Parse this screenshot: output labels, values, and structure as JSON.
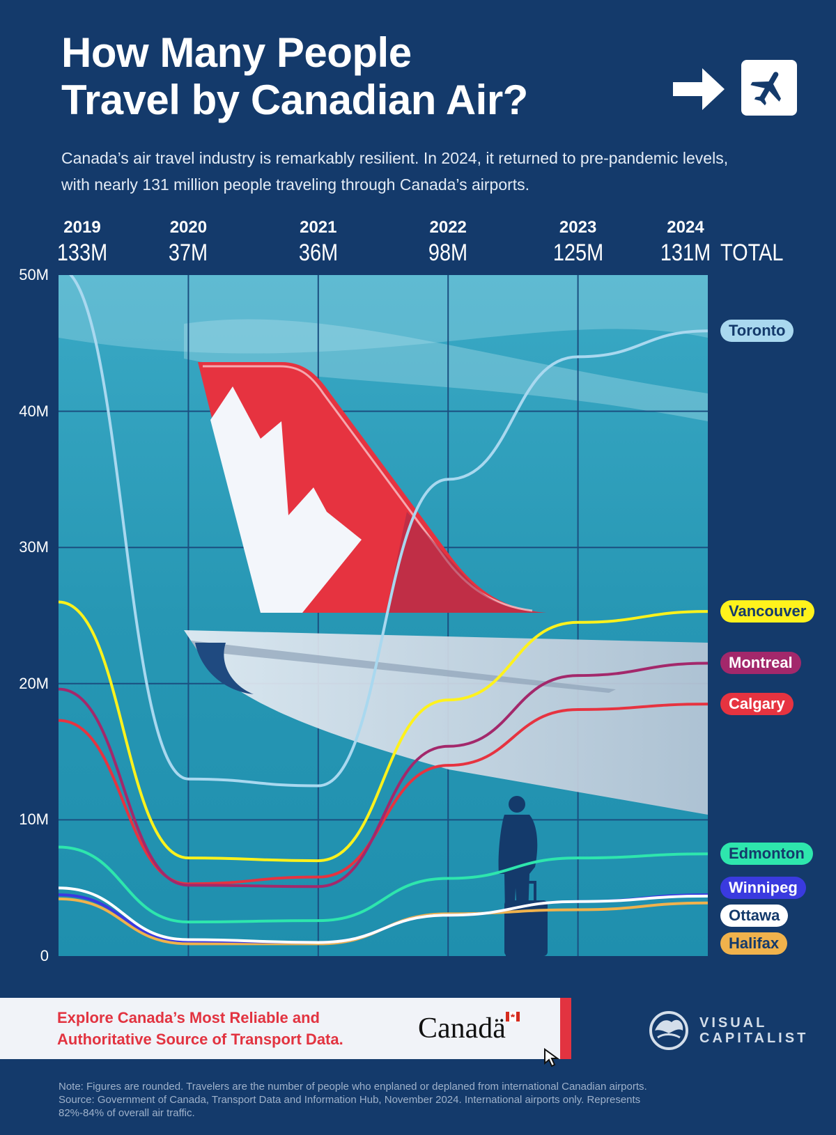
{
  "header": {
    "title_line1": "How Many People",
    "title_line2": "Travel by Canadian Air?",
    "subtitle": "Canada’s air travel industry is remarkably resilient. In 2024, it returned to pre-pandemic levels, with nearly 131 million people traveling through Canada’s airports."
  },
  "colors": {
    "background": "#143a6b",
    "plot_bg": "#2ba3c0",
    "tail_red": "#e63340",
    "Toronto": "#a9d8ef",
    "Vancouver": "#fff21c",
    "Montreal": "#a3286b",
    "Calgary": "#e63340",
    "Edmonton": "#2ee6ad",
    "Ottawa": "#ffffff",
    "Winnipeg": "#3a3adf",
    "Halifax": "#f0b24c"
  },
  "totals_label": "TOTAL",
  "chart_data": {
    "type": "line",
    "title": "How Many People Travel by Canadian Air?",
    "x": [
      "2019",
      "2020",
      "2021",
      "2022",
      "2023",
      "2024"
    ],
    "totals": [
      "133M",
      "37M",
      "36M",
      "98M",
      "125M",
      "131M"
    ],
    "y_unit": "travelers (millions)",
    "ylim": [
      0,
      50
    ],
    "y_ticks": [
      {
        "value": 50,
        "label": "50M"
      },
      {
        "value": 40,
        "label": "40M"
      },
      {
        "value": 30,
        "label": "30M"
      },
      {
        "value": 20,
        "label": "20M"
      },
      {
        "value": 10,
        "label": "10M"
      },
      {
        "value": 0,
        "label": "0"
      }
    ],
    "grid": true,
    "legend": "right (labels at line ends)",
    "series": [
      {
        "name": "Toronto",
        "values": [
          50.5,
          13.0,
          12.5,
          35.0,
          44.0,
          45.9
        ]
      },
      {
        "name": "Vancouver",
        "values": [
          26.0,
          7.2,
          7.0,
          18.8,
          24.5,
          25.3
        ]
      },
      {
        "name": "Montreal",
        "values": [
          19.6,
          5.2,
          5.1,
          15.4,
          20.6,
          21.5
        ]
      },
      {
        "name": "Calgary",
        "values": [
          17.3,
          5.3,
          5.8,
          14.0,
          18.1,
          18.5
        ]
      },
      {
        "name": "Edmonton",
        "values": [
          8.0,
          2.5,
          2.6,
          5.7,
          7.2,
          7.5
        ]
      },
      {
        "name": "Ottawa",
        "values": [
          5.0,
          1.2,
          1.0,
          3.0,
          4.0,
          4.4
        ]
      },
      {
        "name": "Winnipeg",
        "values": [
          4.5,
          1.1,
          1.0,
          3.0,
          4.0,
          4.5
        ]
      },
      {
        "name": "Halifax",
        "values": [
          4.2,
          0.9,
          0.9,
          3.1,
          3.4,
          3.9
        ]
      }
    ]
  },
  "banner": {
    "text_line1": "Explore Canada’s Most Reliable and",
    "text_line2": "Authoritative Source of Transport Data.",
    "logo_text": "Canadä"
  },
  "brand": {
    "line1": "VISUAL",
    "line2": "CAPITALIST"
  },
  "notes": {
    "line1": "Note: Figures are rounded. Travelers are the number of people who enplaned or deplaned from international Canadian airports.",
    "line2": "Source: Government of Canada, Transport Data and Information Hub, November 2024. International airports only. Represents",
    "line3": "82%-84% of overall air traffic."
  },
  "icons": [
    "arrow-right-icon",
    "airplane-icon",
    "canada-flag-icon",
    "cursor-icon",
    "visual-capitalist-logo-icon"
  ]
}
